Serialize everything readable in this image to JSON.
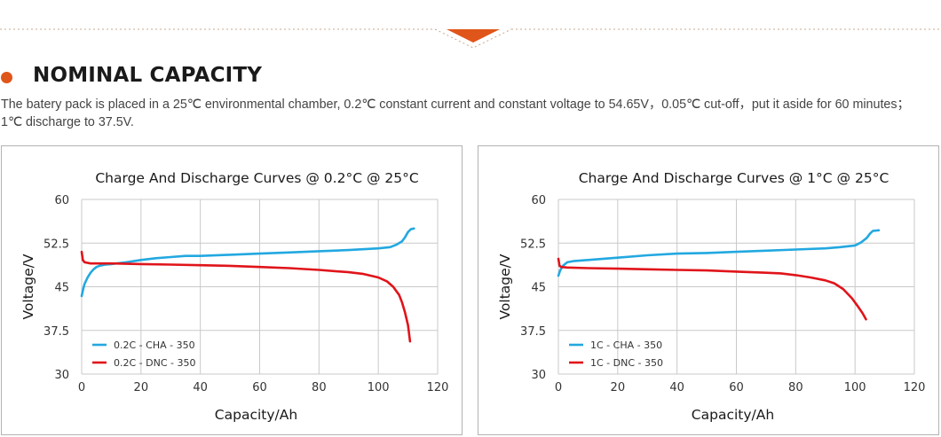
{
  "section": {
    "title": "NOMINAL CAPACITY",
    "description_line1": "The batery pack is placed in a 25℃ environmental chamber, 0.2℃ constant current and constant voltage to 54.65V，0.05℃ cut-off，put it aside for 60 minutes；",
    "description_line2": "1℃ discharge to 37.5V."
  },
  "colors": {
    "accent": "#e0561a",
    "charge": "#22a8e0",
    "discharge": "#e0141a",
    "grid": "#c9c9c9",
    "panel_border": "#b3b3b3"
  },
  "chart_data": [
    {
      "type": "line",
      "title": "Charge And Discharge Curves @ 0.2°C @ 25°C",
      "xlabel": "Capacity/Ah",
      "ylabel": "Voltage/V",
      "xlim": [
        0,
        120
      ],
      "ylim": [
        30,
        60
      ],
      "x_ticks": [
        "0",
        "20",
        "40",
        "60",
        "80",
        "100",
        "120"
      ],
      "y_ticks": [
        "30",
        "37.5",
        "45",
        "52.5",
        "60"
      ],
      "grid": true,
      "legend_position": "lower-left",
      "series": [
        {
          "name": "0.2C - CHA - 350",
          "color": "#22a8e0",
          "points": [
            [
              0,
              43.4
            ],
            [
              0.5,
              44.6
            ],
            [
              1,
              45.5
            ],
            [
              2,
              46.6
            ],
            [
              3,
              47.4
            ],
            [
              4,
              48.0
            ],
            [
              5,
              48.4
            ],
            [
              6,
              48.6
            ],
            [
              8,
              48.8
            ],
            [
              10,
              48.9
            ],
            [
              15,
              49.2
            ],
            [
              20,
              49.6
            ],
            [
              25,
              49.9
            ],
            [
              30,
              50.1
            ],
            [
              35,
              50.3
            ],
            [
              40,
              50.3
            ],
            [
              50,
              50.5
            ],
            [
              60,
              50.7
            ],
            [
              70,
              50.9
            ],
            [
              80,
              51.1
            ],
            [
              90,
              51.3
            ],
            [
              100,
              51.6
            ],
            [
              104,
              51.8
            ],
            [
              106,
              52.2
            ],
            [
              108,
              52.8
            ],
            [
              109,
              53.5
            ],
            [
              110,
              54.4
            ],
            [
              111,
              54.9
            ],
            [
              112,
              55.0
            ]
          ]
        },
        {
          "name": "0.2C - DNC - 350",
          "color": "#e0141a",
          "points": [
            [
              0,
              51.0
            ],
            [
              0.4,
              49.6
            ],
            [
              1,
              49.2
            ],
            [
              3,
              49.0
            ],
            [
              10,
              49.0
            ],
            [
              20,
              48.9
            ],
            [
              30,
              48.8
            ],
            [
              40,
              48.7
            ],
            [
              50,
              48.6
            ],
            [
              60,
              48.4
            ],
            [
              70,
              48.2
            ],
            [
              80,
              47.9
            ],
            [
              90,
              47.5
            ],
            [
              95,
              47.2
            ],
            [
              100,
              46.6
            ],
            [
              103,
              45.9
            ],
            [
              105,
              45.0
            ],
            [
              107,
              43.6
            ],
            [
              108,
              42.3
            ],
            [
              109,
              40.6
            ],
            [
              110,
              38.4
            ],
            [
              110.7,
              35.6
            ]
          ]
        }
      ]
    },
    {
      "type": "line",
      "title": "Charge And Discharge Curves @ 1°C @ 25°C",
      "xlabel": "Capacity/Ah",
      "ylabel": "Voltage/V",
      "xlim": [
        0,
        120
      ],
      "ylim": [
        30,
        60
      ],
      "x_ticks": [
        "0",
        "20",
        "40",
        "60",
        "80",
        "100",
        "120"
      ],
      "y_ticks": [
        "30",
        "37.5",
        "45",
        "52.5",
        "60"
      ],
      "grid": true,
      "legend_position": "lower-left",
      "series": [
        {
          "name": "1C - CHA - 350",
          "color": "#22a8e0",
          "points": [
            [
              0,
              46.9
            ],
            [
              0.6,
              47.8
            ],
            [
              1.5,
              48.6
            ],
            [
              3,
              49.2
            ],
            [
              5,
              49.4
            ],
            [
              10,
              49.6
            ],
            [
              20,
              50.0
            ],
            [
              30,
              50.4
            ],
            [
              40,
              50.7
            ],
            [
              50,
              50.8
            ],
            [
              60,
              51.0
            ],
            [
              70,
              51.2
            ],
            [
              80,
              51.4
            ],
            [
              90,
              51.6
            ],
            [
              95,
              51.8
            ],
            [
              100,
              52.1
            ],
            [
              102,
              52.6
            ],
            [
              104,
              53.4
            ],
            [
              105,
              54.1
            ],
            [
              106,
              54.6
            ],
            [
              108,
              54.7
            ]
          ]
        },
        {
          "name": "1C - DNC - 350",
          "color": "#e0141a",
          "points": [
            [
              0,
              49.8
            ],
            [
              0.4,
              48.6
            ],
            [
              1,
              48.4
            ],
            [
              3,
              48.3
            ],
            [
              10,
              48.2
            ],
            [
              20,
              48.1
            ],
            [
              30,
              48.0
            ],
            [
              40,
              47.9
            ],
            [
              50,
              47.8
            ],
            [
              60,
              47.6
            ],
            [
              70,
              47.4
            ],
            [
              75,
              47.3
            ],
            [
              80,
              47.0
            ],
            [
              85,
              46.6
            ],
            [
              90,
              46.1
            ],
            [
              93,
              45.6
            ],
            [
              96,
              44.6
            ],
            [
              99,
              43.0
            ],
            [
              101,
              41.6
            ],
            [
              102.5,
              40.5
            ],
            [
              103.7,
              39.4
            ]
          ]
        }
      ]
    }
  ]
}
